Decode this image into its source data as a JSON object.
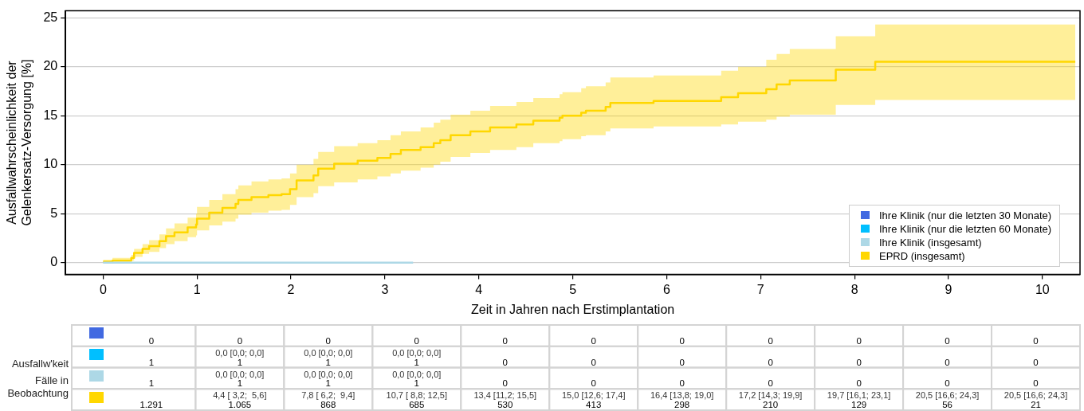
{
  "chart_data": [
    {
      "type": "step",
      "xlabel": "Zeit in Jahren nach Erstimplantation",
      "ylabel": "Ausfallwahrscheinlichkeit der\nGelenkersatz-Versorgung [%]",
      "xlim": [
        -0.4,
        10.4
      ],
      "ylim": [
        -1.2,
        25.7
      ],
      "xticks": [
        0,
        1,
        2,
        3,
        4,
        5,
        6,
        7,
        8,
        9,
        10
      ],
      "yticks": [
        0,
        5,
        10,
        15,
        20,
        25
      ],
      "grid": "y",
      "legend": "bottom right",
      "series": [
        {
          "name": "Ihre Klinik (nur die letzten 30 Monate)",
          "color": "#4169e1"
        },
        {
          "name": "Ihre Klinik (nur die letzten 60 Monate)",
          "color": "#00bfff"
        },
        {
          "name": "Ihre Klinik (insgesamt)",
          "color": "#add8e6",
          "x": [
            0,
            3.3
          ],
          "values": [
            0,
            0
          ]
        },
        {
          "name": "EPRD (insgesamt)",
          "color": "#ffd700",
          "x": [
            0,
            0.1,
            0.3,
            0.33,
            0.42,
            0.49,
            0.6,
            0.67,
            0.76,
            0.9,
            0.99,
            1.0,
            1.13,
            1.27,
            1.41,
            1.44,
            1.58,
            1.76,
            1.9,
            1.99,
            2.06,
            2.24,
            2.29,
            2.46,
            2.71,
            2.92,
            3.06,
            3.17,
            3.38,
            3.52,
            3.59,
            3.7,
            3.91,
            4.12,
            4.4,
            4.58,
            4.86,
            4.89,
            5.09,
            5.14,
            5.35,
            5.4,
            5.86,
            6.58,
            6.76,
            7.06,
            7.17,
            7.31,
            7.8,
            8.22,
            10.35
          ],
          "values": [
            0.1,
            0.2,
            0.5,
            1.0,
            1.4,
            1.7,
            2.2,
            2.7,
            3.1,
            3.6,
            3.9,
            4.5,
            5.1,
            5.6,
            6.0,
            6.4,
            6.7,
            6.9,
            7.0,
            7.5,
            8.4,
            8.9,
            9.6,
            10.1,
            10.4,
            10.7,
            11.1,
            11.5,
            11.8,
            12.2,
            12.5,
            13.0,
            13.4,
            13.8,
            14.1,
            14.5,
            14.8,
            15.0,
            15.3,
            15.5,
            15.9,
            16.3,
            16.5,
            16.9,
            17.3,
            17.7,
            18.2,
            18.6,
            19.7,
            20.5,
            20.5
          ],
          "lower": [
            0,
            0.1,
            0.2,
            0.6,
            0.9,
            1.1,
            1.5,
            1.9,
            2.2,
            2.6,
            2.8,
            3.3,
            3.8,
            4.2,
            4.5,
            4.9,
            5.1,
            5.3,
            5.4,
            5.9,
            6.7,
            7.1,
            7.8,
            8.2,
            8.5,
            8.8,
            9.1,
            9.4,
            9.7,
            10.0,
            10.3,
            10.8,
            11.2,
            11.5,
            11.8,
            12.2,
            12.4,
            12.6,
            12.9,
            13.0,
            13.4,
            13.7,
            13.9,
            14.1,
            14.4,
            14.6,
            14.9,
            15.1,
            16.1,
            16.6,
            16.6
          ],
          "upper": [
            0.3,
            0.5,
            0.8,
            1.4,
            1.9,
            2.3,
            2.9,
            3.5,
            4.0,
            4.6,
            5.0,
            5.7,
            6.4,
            7.0,
            7.5,
            7.9,
            8.3,
            8.5,
            8.6,
            9.1,
            10.0,
            10.6,
            11.3,
            11.9,
            12.2,
            12.5,
            13.0,
            13.4,
            13.8,
            14.3,
            14.6,
            15.1,
            15.5,
            16.0,
            16.4,
            16.8,
            17.2,
            17.4,
            17.8,
            18.0,
            18.4,
            18.9,
            19.1,
            19.6,
            20.0,
            20.7,
            21.3,
            21.8,
            23.1,
            24.3,
            24.3
          ]
        }
      ]
    },
    {
      "type": "other",
      "annotations": [
        "Ausfallw'keit",
        "Fälle in Beobachtung"
      ],
      "cell_labels": [
        [
          "0",
          "0",
          "0",
          "0",
          "0",
          "0",
          "0",
          "0",
          "0",
          "0",
          "0"
        ],
        [
          "1",
          "0,0 [0,0; 0,0]\n1",
          "0,0 [0,0; 0,0]\n1",
          "0,0 [0,0; 0,0]\n1",
          "0",
          "0",
          "0",
          "0",
          "0",
          "0",
          "0"
        ],
        [
          "1",
          "0,0 [0,0; 0,0]\n1",
          "0,0 [0,0; 0,0]\n1",
          "0,0 [0,0; 0,0]\n1",
          "0",
          "0",
          "0",
          "0",
          "0",
          "0",
          "0"
        ],
        [
          "1.291",
          "4,4 [ 3,2;  5,6]\n1.065",
          "7,8 [ 6,2;  9,4]\n868",
          "10,7 [ 8,8; 12,5]\n685",
          "13,4 [11,2; 15,5]\n530",
          "15,0 [12,6; 17,4]\n413",
          "16,4 [13,8; 19,0]\n298",
          "17,2 [14,3; 19,9]\n210",
          "19,7 [16,1; 23,1]\n129",
          "20,5 [16,6; 24,3]\n56",
          "20,5 [16,6; 24,3]\n21"
        ]
      ]
    }
  ]
}
